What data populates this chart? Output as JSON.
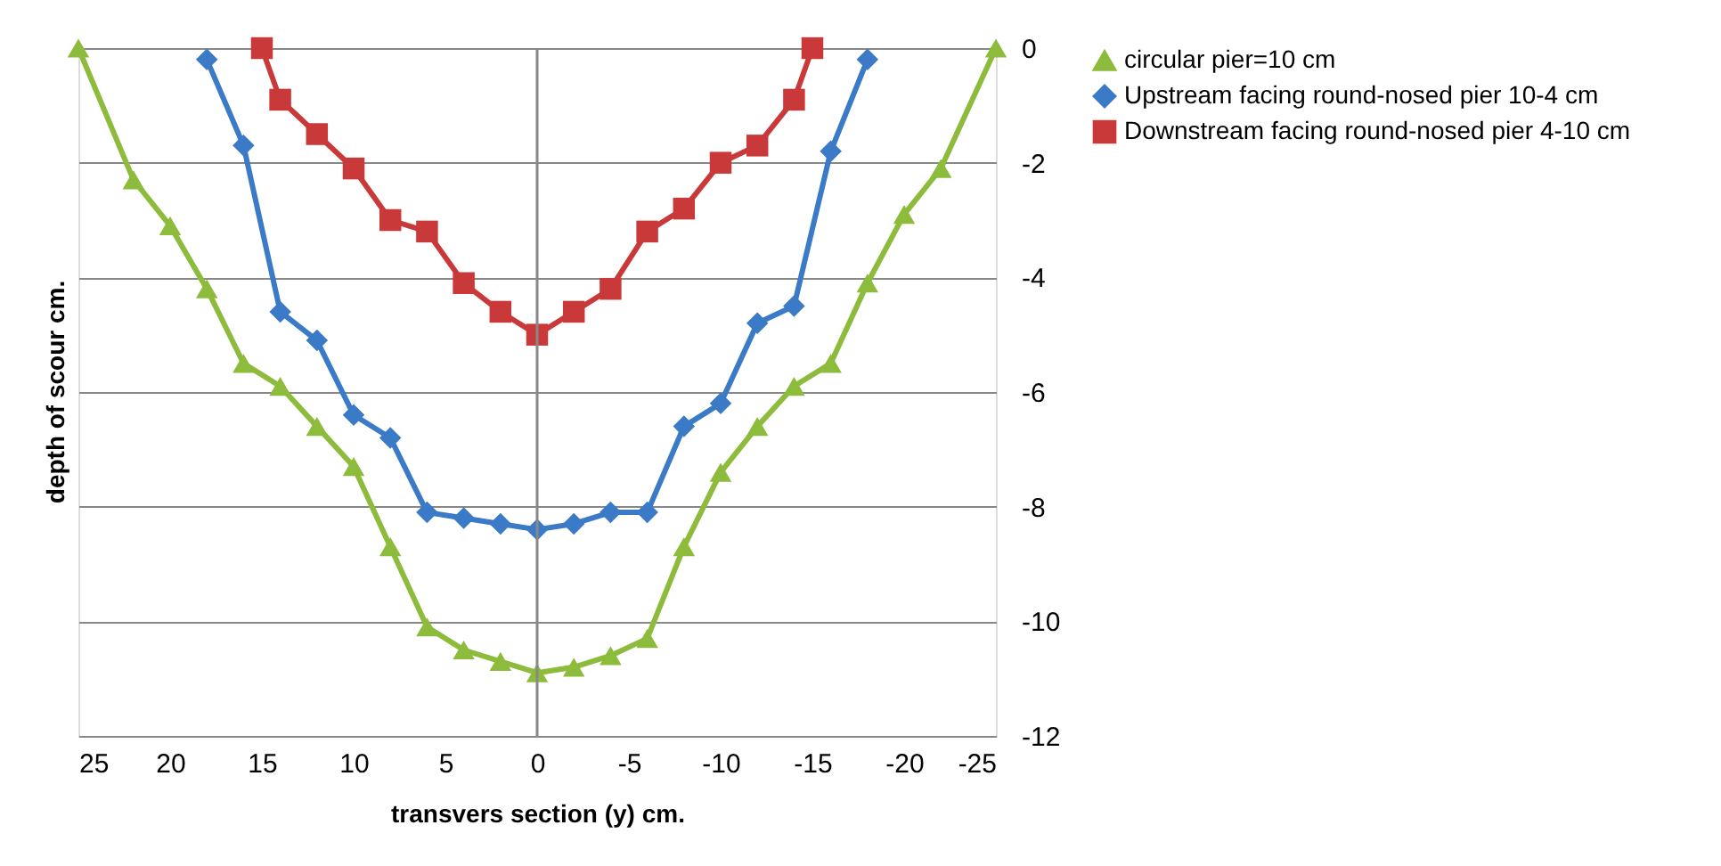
{
  "chart_data": {
    "type": "line",
    "xlabel": "transvers section (y) cm.",
    "ylabel": "depth of scour cm.",
    "xlim": [
      25,
      -25
    ],
    "xticks": [
      25,
      20,
      15,
      10,
      5,
      0,
      -5,
      -10,
      -15,
      -20,
      -25
    ],
    "ylim": [
      -12,
      0
    ],
    "yticks": [
      0,
      -2,
      -4,
      -6,
      -8,
      -10,
      -12
    ],
    "grid": "y",
    "legend": "right",
    "line_style": "solid",
    "ref_lines": [
      {
        "axis": "x",
        "value": 0,
        "label": null
      }
    ],
    "series": [
      {
        "name": "circular pier=10 cm",
        "color": "#8dbb3c",
        "marker": "triangle",
        "x": [
          25,
          22,
          20,
          18,
          16,
          14,
          12,
          10,
          8,
          6,
          4,
          2,
          0,
          -2,
          -4,
          -6,
          -8,
          -10,
          -12,
          -14,
          -16,
          -18,
          -20,
          -22,
          -25
        ],
        "values": [
          0,
          -2.3,
          -3.1,
          -4.2,
          -5.5,
          -5.9,
          -6.6,
          -7.3,
          -8.7,
          -10.1,
          -10.5,
          -10.7,
          -10.9,
          -10.8,
          -10.6,
          -10.3,
          -8.7,
          -7.4,
          -6.6,
          -5.9,
          -5.5,
          -4.1,
          -2.9,
          -2.1,
          0
        ]
      },
      {
        "name": "Upstream facing round-nosed pier 10-4 cm",
        "color": "#3a7ac6",
        "marker": "diamond",
        "x": [
          18,
          16,
          14,
          12,
          10,
          8,
          6,
          4,
          2,
          0,
          -2,
          -4,
          -6,
          -8,
          -10,
          -12,
          -14,
          -16,
          -18
        ],
        "values": [
          -0.2,
          -1.7,
          -4.6,
          -5.1,
          -6.4,
          -6.8,
          -8.1,
          -8.2,
          -8.3,
          -8.4,
          -8.3,
          -8.1,
          -8.1,
          -6.6,
          -6.2,
          -4.8,
          -4.5,
          -1.8,
          -0.2
        ]
      },
      {
        "name": "Downstream facing round-nosed pier 4-10 cm",
        "color": "#c9393a",
        "marker": "square",
        "x": [
          15,
          14,
          12,
          10,
          8,
          6,
          4,
          2,
          0,
          -2,
          -4,
          -6,
          -8,
          -10,
          -12,
          -14,
          -15
        ],
        "values": [
          0,
          -0.9,
          -1.5,
          -2.1,
          -3.0,
          -3.2,
          -4.1,
          -4.6,
          -5.0,
          -4.6,
          -4.2,
          -3.2,
          -2.8,
          -2.0,
          -1.7,
          -0.9,
          0
        ]
      }
    ]
  }
}
